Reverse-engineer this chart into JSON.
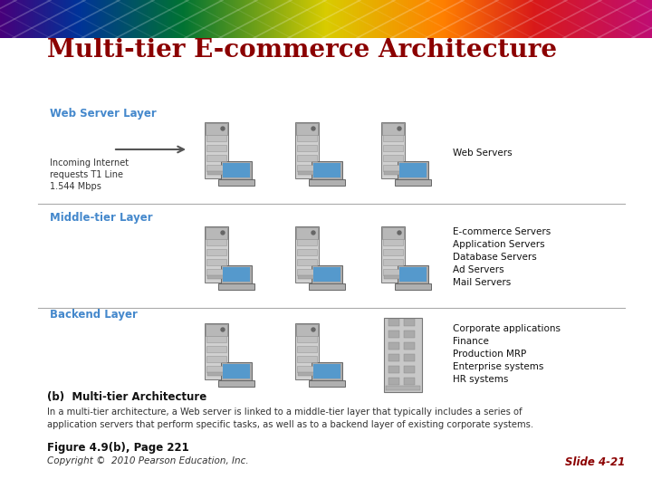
{
  "title": "Multi-tier E-commerce Architecture",
  "title_color": "#8B0000",
  "background_color": "#FFFFFF",
  "layer_label_color": "#4488CC",
  "layers": [
    {
      "label": "Web Server Layer",
      "right_text_lines": [
        "Web Servers"
      ],
      "left_text": "Incoming Internet\nrequests T1 Line\n1.544 Mbps",
      "has_arrow": true
    },
    {
      "label": "Middle-tier Layer",
      "right_text_lines": [
        "E-commerce Servers",
        "Application Servers",
        "Database Servers",
        "Ad Servers",
        "Mail Servers"
      ],
      "left_text": "",
      "has_arrow": false
    },
    {
      "label": "Backend Layer",
      "right_text_lines": [
        "Corporate applications",
        "Finance",
        "Production MRP",
        "Enterprise systems",
        "HR systems"
      ],
      "left_text": "",
      "has_arrow": false
    }
  ],
  "caption_bold": "(b)  Multi-tier Architecture",
  "caption_text": "In a multi-tier architecture, a Web server is linked to a middle-tier layer that typically includes a series of\napplication servers that perform specific tasks, as well as to a backend layer of existing corporate systems.",
  "figure_label": "Figure 4.9(b), Page 221",
  "copyright_text": "Copyright ©  2010 Pearson Education, Inc.",
  "slide_label": "Slide 4-21",
  "slide_label_color": "#8B0000"
}
